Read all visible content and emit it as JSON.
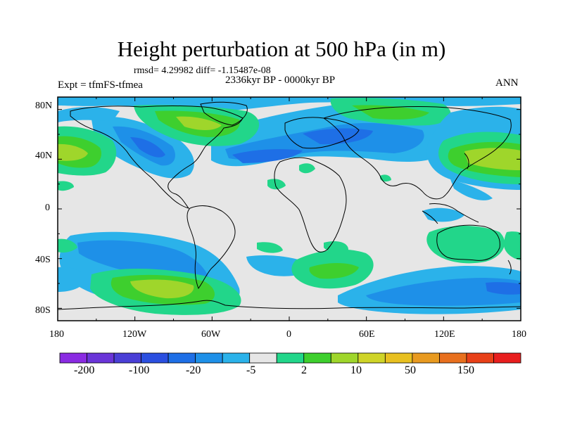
{
  "title": "Height perturbation at 500 hPa (in m)",
  "stats_line": "rmsd= 4.29982  diff= -1.15487e-08",
  "period_label": "2336kyr BP - 0000kyr BP",
  "experiment_label": "Expt = tfmFS-tfmea",
  "season_label": "ANN",
  "lat_ticks": [
    "80N",
    "40N",
    "0",
    "40S",
    "80S"
  ],
  "lon_ticks": [
    "180",
    "120W",
    "60W",
    "0",
    "60E",
    "120E",
    "180"
  ],
  "colorbar": {
    "colors": [
      "#8a2be2",
      "#6a35d8",
      "#4a3fd6",
      "#2b4fe0",
      "#1e6fe6",
      "#1e90e8",
      "#2bb2ea",
      "#e6e6e6",
      "#22d68a",
      "#3ecf2e",
      "#9fd62b",
      "#cfd428",
      "#e8c020",
      "#e89a20",
      "#e8701e",
      "#e84018",
      "#e81e1e"
    ],
    "labels": [
      "-200",
      "-100",
      "-20",
      "-5",
      "2",
      "10",
      "50",
      "150"
    ]
  },
  "colors": {
    "background": "#e6e6e6",
    "coastline": "#000000"
  }
}
